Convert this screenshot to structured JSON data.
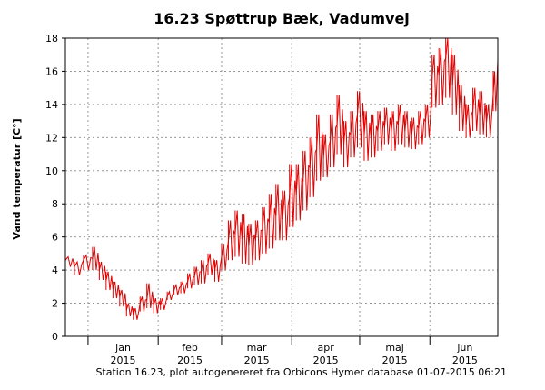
{
  "chart_data": {
    "type": "line",
    "title": "16.23 Spøttrup Bæk, Vadumvej",
    "ylabel": "Vand temperatur [C°]",
    "xlabel": "",
    "ylim": [
      0,
      18
    ],
    "y_ticks": [
      "0",
      "2",
      "4",
      "6",
      "8",
      "10",
      "12",
      "14",
      "16",
      "18"
    ],
    "xlim": [
      "2014-12-22",
      "2015-07-01"
    ],
    "x_ticks": [
      {
        "date": "2015-01-01",
        "label": "jan",
        "year": "2015"
      },
      {
        "date": "2015-02-01",
        "label": "feb",
        "year": "2015"
      },
      {
        "date": "2015-03-01",
        "label": "mar",
        "year": "2015"
      },
      {
        "date": "2015-04-01",
        "label": "apr",
        "year": "2015"
      },
      {
        "date": "2015-05-01",
        "label": "maj",
        "year": "2015"
      },
      {
        "date": "2015-06-01",
        "label": "jun",
        "year": "2015"
      }
    ],
    "grid": true,
    "series_color": "#e00000",
    "series": [
      {
        "name": "",
        "x": [
          "2014-12-22",
          "2014-12-26",
          "2014-12-30",
          "2015-01-03",
          "2015-01-06",
          "2015-01-09",
          "2015-01-12",
          "2015-01-15",
          "2015-01-18",
          "2015-01-21",
          "2015-01-24",
          "2015-01-27",
          "2015-01-30",
          "2015-02-02",
          "2015-02-05",
          "2015-02-08",
          "2015-02-11",
          "2015-02-14",
          "2015-02-17",
          "2015-02-20",
          "2015-02-23",
          "2015-02-26",
          "2015-03-01",
          "2015-03-04",
          "2015-03-07",
          "2015-03-10",
          "2015-03-13",
          "2015-03-16",
          "2015-03-19",
          "2015-03-22",
          "2015-03-25",
          "2015-03-28",
          "2015-03-31",
          "2015-04-03",
          "2015-04-06",
          "2015-04-09",
          "2015-04-12",
          "2015-04-15",
          "2015-04-18",
          "2015-04-21",
          "2015-04-24",
          "2015-04-27",
          "2015-04-30",
          "2015-05-03",
          "2015-05-06",
          "2015-05-09",
          "2015-05-12",
          "2015-05-15",
          "2015-05-18",
          "2015-05-21",
          "2015-05-24",
          "2015-05-27",
          "2015-05-30",
          "2015-06-02",
          "2015-06-05",
          "2015-06-08",
          "2015-06-11",
          "2015-06-14",
          "2015-06-17",
          "2015-06-20",
          "2015-06-23",
          "2015-06-26",
          "2015-06-29",
          "2015-07-01"
        ],
        "y": [
          4.6,
          4.2,
          4.6,
          4.7,
          4.0,
          3.4,
          2.9,
          2.4,
          1.6,
          1.3,
          2.0,
          2.2,
          1.9,
          1.9,
          2.4,
          2.8,
          3.0,
          3.3,
          3.6,
          3.9,
          4.4,
          4.0,
          4.8,
          5.7,
          6.2,
          5.9,
          5.5,
          5.8,
          6.4,
          6.9,
          7.3,
          7.1,
          8.4,
          8.6,
          9.4,
          10.2,
          11.3,
          10.8,
          11.8,
          12.8,
          11.6,
          12.2,
          13.4,
          12.2,
          12.0,
          12.4,
          12.6,
          12.4,
          12.8,
          12.4,
          12.2,
          12.6,
          13.0,
          15.6,
          15.8,
          16.8,
          15.2,
          13.8,
          12.8,
          13.6,
          13.4,
          12.9,
          14.6,
          16.7
        ],
        "min": [
          4.2,
          3.7,
          4.0,
          4.0,
          3.4,
          2.8,
          2.3,
          1.8,
          1.2,
          1.0,
          1.5,
          1.7,
          1.4,
          1.6,
          2.2,
          2.5,
          2.6,
          2.9,
          3.1,
          3.2,
          3.7,
          3.3,
          4.0,
          4.6,
          4.8,
          4.4,
          4.3,
          4.6,
          5.0,
          5.3,
          5.8,
          5.8,
          6.6,
          7.0,
          7.6,
          8.4,
          9.4,
          9.6,
          10.2,
          11.0,
          10.2,
          10.8,
          11.4,
          10.6,
          10.8,
          11.2,
          11.6,
          11.2,
          11.6,
          11.4,
          11.3,
          11.6,
          12.0,
          13.8,
          14.0,
          14.4,
          13.4,
          12.4,
          12.0,
          12.4,
          12.2,
          12.0,
          13.6,
          15.0
        ],
        "max": [
          4.8,
          4.5,
          4.9,
          5.4,
          4.5,
          3.9,
          3.3,
          2.8,
          2.0,
          1.7,
          2.4,
          3.2,
          2.3,
          2.3,
          2.7,
          3.1,
          3.3,
          3.8,
          4.2,
          4.6,
          5.0,
          4.6,
          5.6,
          7.0,
          7.6,
          7.4,
          6.8,
          7.0,
          7.8,
          8.6,
          9.2,
          8.8,
          10.4,
          10.4,
          11.2,
          12.0,
          13.4,
          12.2,
          13.4,
          14.6,
          13.0,
          13.6,
          14.8,
          13.6,
          13.4,
          13.6,
          13.8,
          13.6,
          14.0,
          13.6,
          13.2,
          13.6,
          14.0,
          17.0,
          17.4,
          18.0,
          17.0,
          15.2,
          14.0,
          15.0,
          14.8,
          14.0,
          16.0,
          17.6
        ]
      }
    ]
  },
  "footer": {
    "text": "Station 16.23, plot autogenereret fra Orbicons Hymer database 01-07-2015 06:21"
  }
}
